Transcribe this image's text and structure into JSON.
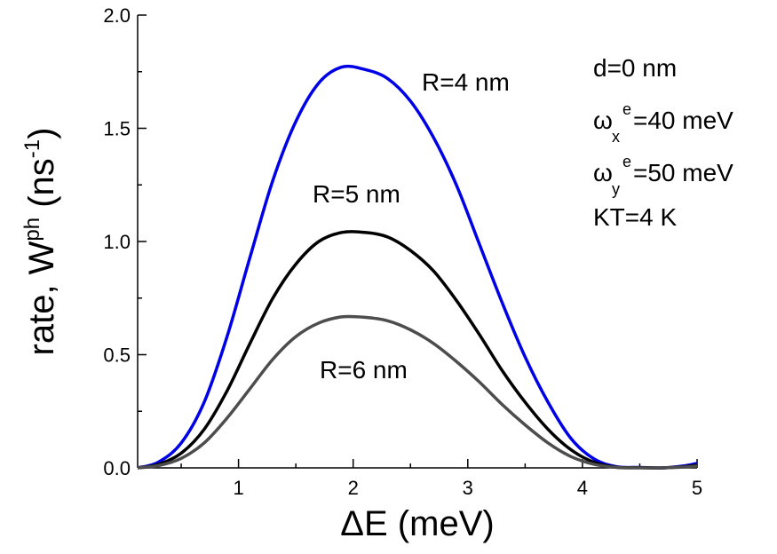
{
  "chart_data": {
    "type": "line",
    "xlabel": "ΔE (meV)",
    "ylabel": {
      "base": "rate, W",
      "sup": "ph",
      "unit_open": " (ns",
      "unit_sup": "-1",
      "unit_close": ")"
    },
    "xlim": [
      0.12,
      5.0
    ],
    "ylim": [
      0.0,
      2.0
    ],
    "x_ticks": [
      1,
      2,
      3,
      4,
      5
    ],
    "x_tick_labels": [
      "1",
      "2",
      "3",
      "4",
      "5"
    ],
    "y_ticks": [
      0.0,
      0.5,
      1.0,
      1.5,
      2.0
    ],
    "y_tick_labels": [
      "0.0",
      "0.5",
      "1.0",
      "1.5",
      "2.0"
    ],
    "grid": false,
    "x": [
      0.12,
      0.3,
      0.5,
      0.7,
      0.9,
      1.1,
      1.3,
      1.5,
      1.7,
      1.9,
      2.1,
      2.3,
      2.5,
      2.7,
      2.9,
      3.1,
      3.3,
      3.5,
      3.7,
      3.9,
      4.1,
      4.3,
      4.5,
      4.7,
      4.9,
      5.0
    ],
    "series": [
      {
        "name": "R=4 nm",
        "color": "#0000e6",
        "values": [
          0.0,
          0.025,
          0.11,
          0.29,
          0.58,
          0.93,
          1.27,
          1.53,
          1.7,
          1.77,
          1.76,
          1.72,
          1.62,
          1.46,
          1.25,
          0.99,
          0.73,
          0.49,
          0.29,
          0.13,
          0.04,
          0.005,
          0.002,
          0.0,
          0.01,
          0.02
        ]
      },
      {
        "name": "R=5 nm",
        "color": "#000000",
        "values": [
          0.0,
          0.015,
          0.065,
          0.17,
          0.34,
          0.55,
          0.75,
          0.9,
          1.0,
          1.04,
          1.04,
          1.02,
          0.96,
          0.87,
          0.74,
          0.59,
          0.43,
          0.29,
          0.17,
          0.08,
          0.025,
          0.003,
          0.001,
          0.0,
          0.006,
          0.012
        ]
      },
      {
        "name": "R=6 nm",
        "color": "#4d4d4d",
        "values": [
          0.0,
          0.01,
          0.042,
          0.11,
          0.22,
          0.35,
          0.48,
          0.58,
          0.64,
          0.667,
          0.665,
          0.65,
          0.61,
          0.55,
          0.47,
          0.38,
          0.28,
          0.19,
          0.11,
          0.05,
          0.016,
          0.002,
          0.0,
          0.0,
          0.004,
          0.008
        ]
      }
    ],
    "annotations": {
      "params": [
        {
          "base": "d=0 nm"
        },
        {
          "base": "ω",
          "sub": "x",
          "sup": "e",
          "rest": "=40 meV"
        },
        {
          "base": "ω",
          "sub": "y",
          "sup": "e",
          "rest": "=50 meV"
        },
        {
          "base": "KT=4 K"
        }
      ]
    }
  }
}
